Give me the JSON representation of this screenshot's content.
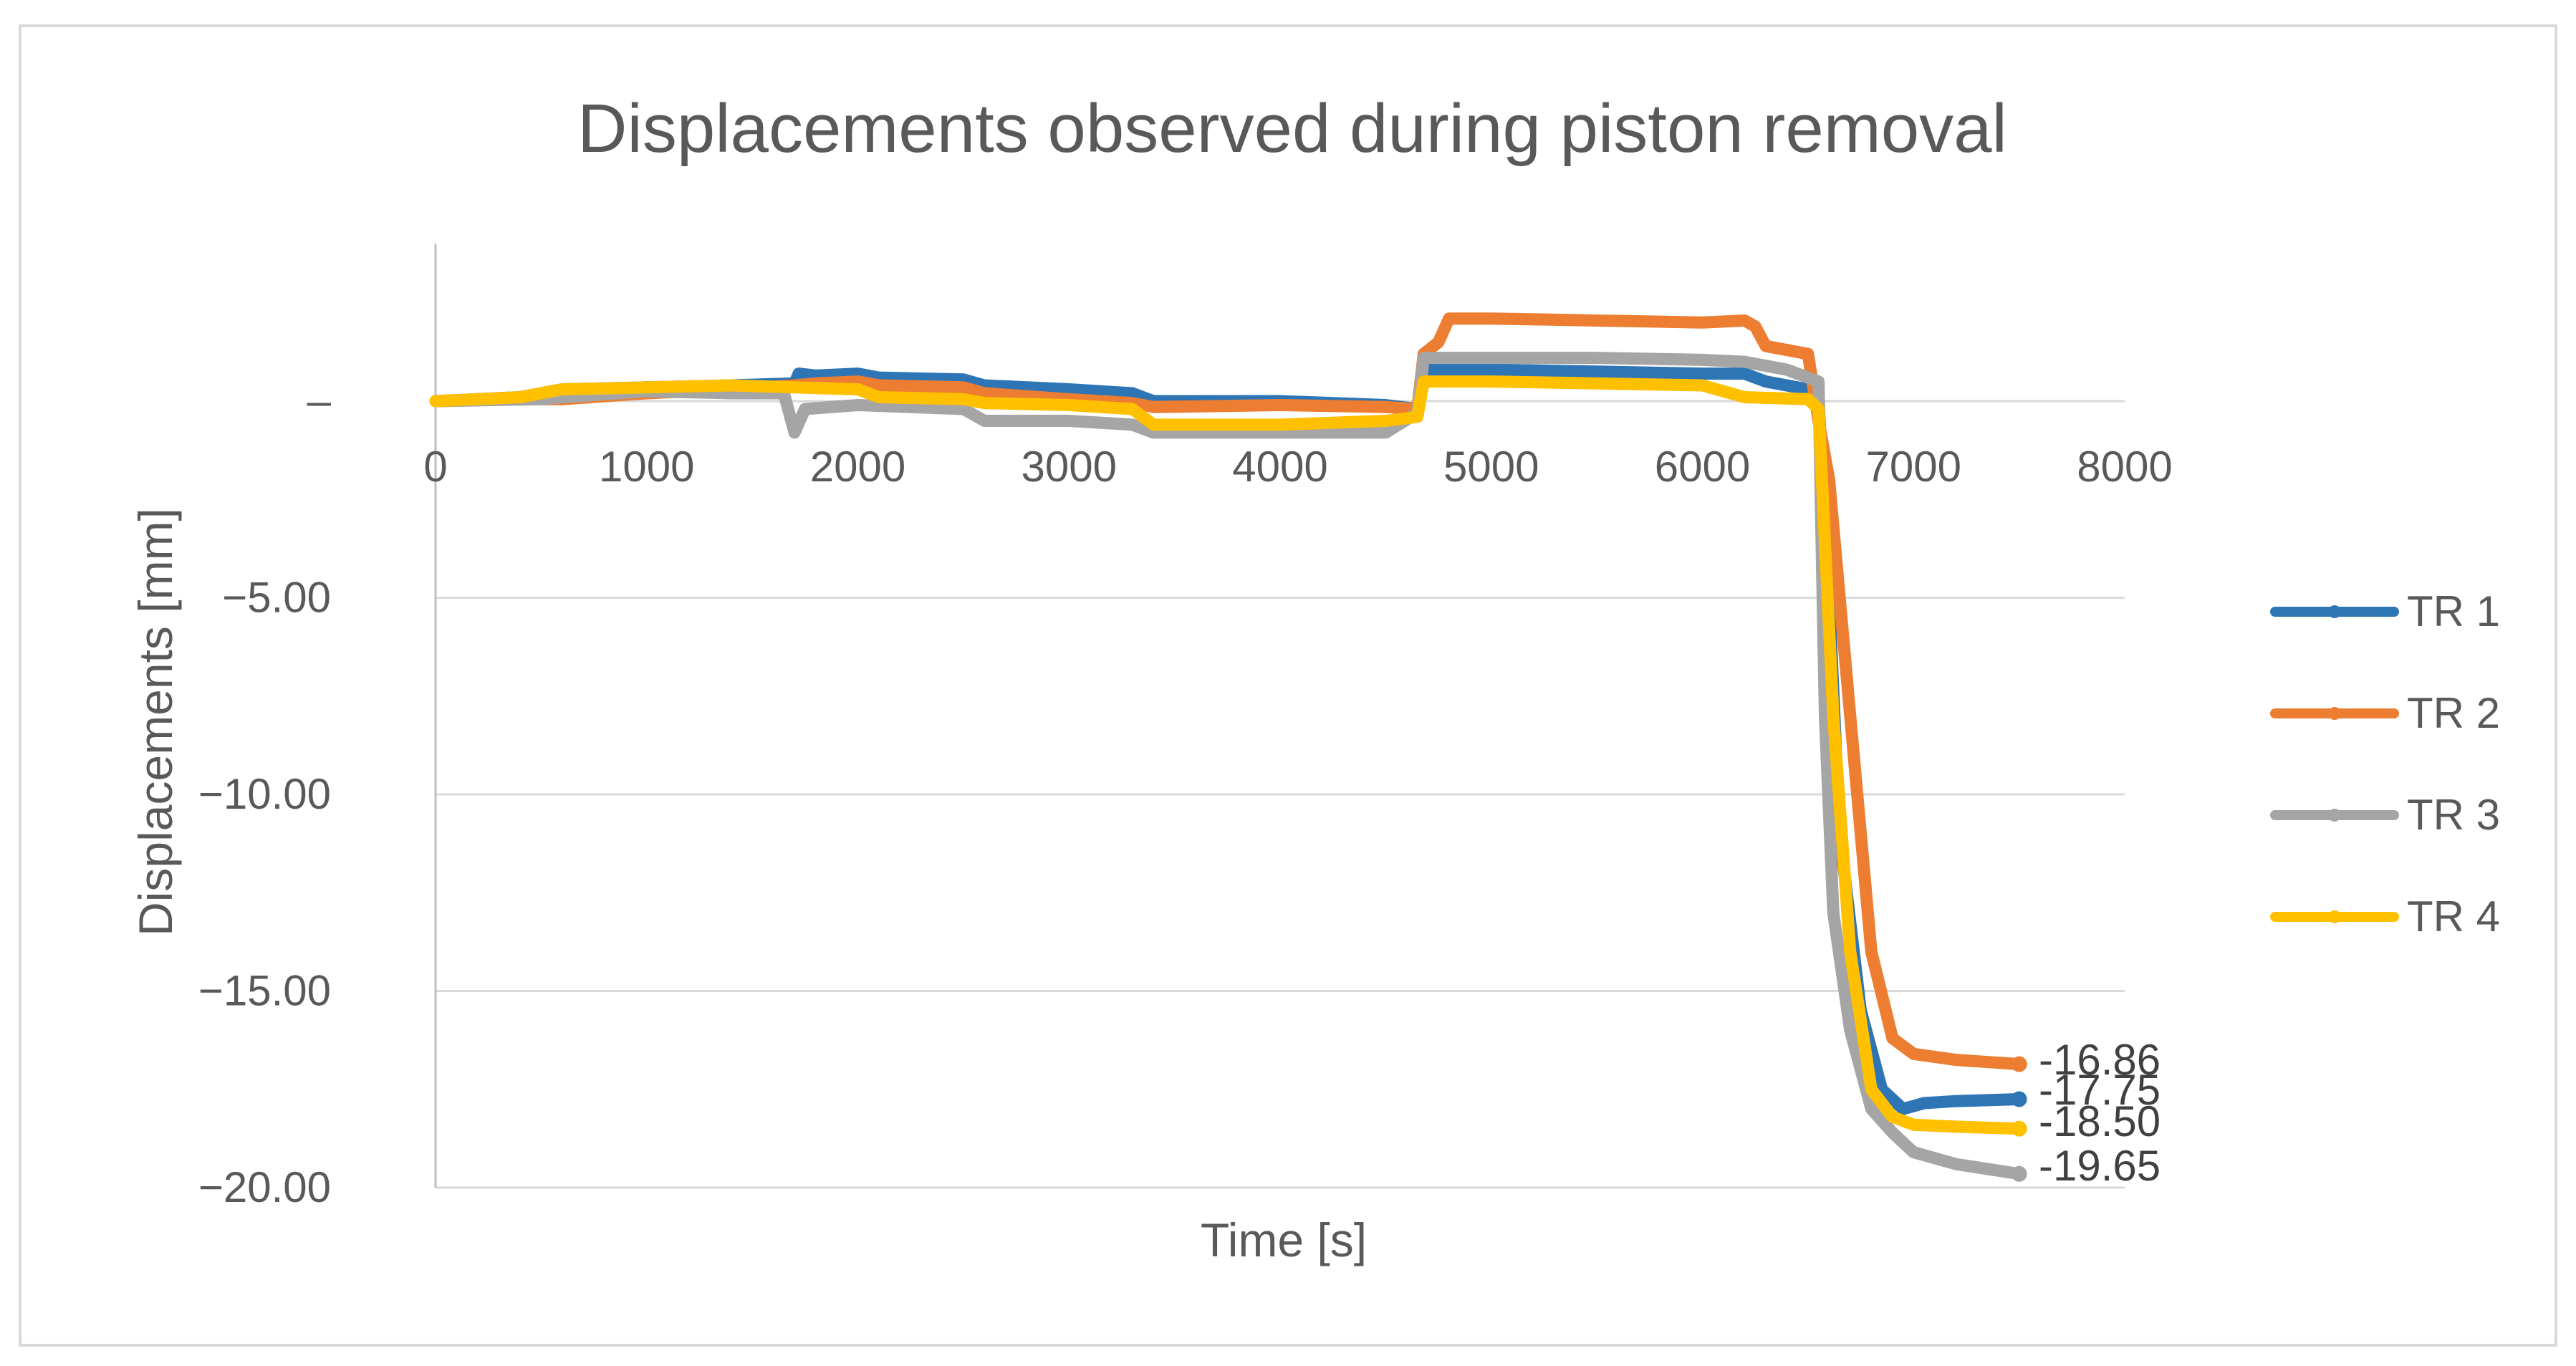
{
  "chart_data": {
    "type": "line",
    "title": "Displacements observed during piston removal",
    "xlabel": "Time [s]",
    "ylabel": "Displacements [mm]",
    "xlim": [
      0,
      8000
    ],
    "ylim": [
      -20,
      4
    ],
    "x_ticks": [
      "0",
      "1000",
      "2000",
      "3000",
      "4000",
      "5000",
      "6000",
      "7000",
      "8000"
    ],
    "y_ticks": [
      {
        "value": 0,
        "label": "–"
      },
      {
        "value": -5,
        "label": "−5.00"
      },
      {
        "value": -10,
        "label": "−10.00"
      },
      {
        "value": -15,
        "label": "−15.00"
      },
      {
        "value": -20,
        "label": "−20.00"
      }
    ],
    "grid": true,
    "legend_position": "right",
    "series": [
      {
        "name": "TR 1",
        "color": "#2e75b6",
        "end_label": "-17.75",
        "points": [
          [
            0,
            0
          ],
          [
            400,
            0.1
          ],
          [
            600,
            0.3
          ],
          [
            1000,
            0.35
          ],
          [
            1400,
            0.4
          ],
          [
            1700,
            0.45
          ],
          [
            1720,
            0.7
          ],
          [
            1800,
            0.65
          ],
          [
            2000,
            0.7
          ],
          [
            2100,
            0.6
          ],
          [
            2500,
            0.55
          ],
          [
            2600,
            0.4
          ],
          [
            3000,
            0.3
          ],
          [
            3300,
            0.2
          ],
          [
            3350,
            0.1
          ],
          [
            3400,
            0
          ],
          [
            4000,
            0
          ],
          [
            4500,
            -0.1
          ],
          [
            4650,
            -0.2
          ],
          [
            4680,
            0.8
          ],
          [
            5000,
            0.8
          ],
          [
            5500,
            0.75
          ],
          [
            6000,
            0.7
          ],
          [
            6200,
            0.7
          ],
          [
            6300,
            0.5
          ],
          [
            6500,
            0.3
          ],
          [
            6550,
            0
          ],
          [
            6600,
            -5
          ],
          [
            6650,
            -11
          ],
          [
            6750,
            -15.5
          ],
          [
            6850,
            -17.5
          ],
          [
            6950,
            -18
          ],
          [
            7050,
            -17.85
          ],
          [
            7200,
            -17.8
          ],
          [
            7500,
            -17.75
          ]
        ]
      },
      {
        "name": "TR 2",
        "color": "#ed7d31",
        "end_label": "-16.86",
        "points": [
          [
            0,
            0
          ],
          [
            400,
            0.05
          ],
          [
            600,
            0.05
          ],
          [
            1000,
            0.2
          ],
          [
            1400,
            0.3
          ],
          [
            1700,
            0.4
          ],
          [
            1800,
            0.45
          ],
          [
            2000,
            0.5
          ],
          [
            2100,
            0.4
          ],
          [
            2500,
            0.35
          ],
          [
            2600,
            0.2
          ],
          [
            3000,
            0.05
          ],
          [
            3300,
            -0.05
          ],
          [
            3400,
            -0.15
          ],
          [
            4000,
            -0.1
          ],
          [
            4500,
            -0.15
          ],
          [
            4650,
            -0.2
          ],
          [
            4680,
            1.2
          ],
          [
            4750,
            1.5
          ],
          [
            4800,
            2.1
          ],
          [
            5000,
            2.1
          ],
          [
            5500,
            2.05
          ],
          [
            6000,
            2.0
          ],
          [
            6200,
            2.05
          ],
          [
            6250,
            1.9
          ],
          [
            6300,
            1.4
          ],
          [
            6500,
            1.2
          ],
          [
            6550,
            -0.5
          ],
          [
            6600,
            -2
          ],
          [
            6700,
            -8
          ],
          [
            6800,
            -14
          ],
          [
            6900,
            -16.2
          ],
          [
            7000,
            -16.6
          ],
          [
            7200,
            -16.75
          ],
          [
            7500,
            -16.86
          ]
        ]
      },
      {
        "name": "TR 3",
        "color": "#a5a5a5",
        "end_label": "-19.65",
        "points": [
          [
            0,
            0
          ],
          [
            500,
            0.05
          ],
          [
            600,
            0.1
          ],
          [
            1000,
            0.25
          ],
          [
            1400,
            0.2
          ],
          [
            1650,
            0.2
          ],
          [
            1700,
            -0.8
          ],
          [
            1750,
            -0.2
          ],
          [
            2000,
            -0.1
          ],
          [
            2500,
            -0.2
          ],
          [
            2600,
            -0.5
          ],
          [
            3000,
            -0.5
          ],
          [
            3300,
            -0.6
          ],
          [
            3400,
            -0.8
          ],
          [
            4000,
            -0.8
          ],
          [
            4500,
            -0.8
          ],
          [
            4650,
            -0.3
          ],
          [
            4680,
            1.1
          ],
          [
            5000,
            1.1
          ],
          [
            5500,
            1.1
          ],
          [
            6000,
            1.05
          ],
          [
            6200,
            1.0
          ],
          [
            6400,
            0.8
          ],
          [
            6550,
            0.5
          ],
          [
            6580,
            -8
          ],
          [
            6620,
            -13
          ],
          [
            6700,
            -16
          ],
          [
            6800,
            -18
          ],
          [
            6900,
            -18.6
          ],
          [
            7000,
            -19.1
          ],
          [
            7200,
            -19.4
          ],
          [
            7500,
            -19.65
          ]
        ]
      },
      {
        "name": "TR 4",
        "color": "#ffc000",
        "end_label": "-18.50",
        "points": [
          [
            0,
            0
          ],
          [
            400,
            0.1
          ],
          [
            600,
            0.3
          ],
          [
            1000,
            0.35
          ],
          [
            1400,
            0.4
          ],
          [
            1700,
            0.35
          ],
          [
            2000,
            0.3
          ],
          [
            2100,
            0.1
          ],
          [
            2500,
            0.05
          ],
          [
            2600,
            -0.05
          ],
          [
            3000,
            -0.1
          ],
          [
            3300,
            -0.2
          ],
          [
            3350,
            -0.4
          ],
          [
            3400,
            -0.6
          ],
          [
            4000,
            -0.6
          ],
          [
            4500,
            -0.5
          ],
          [
            4650,
            -0.4
          ],
          [
            4680,
            0.5
          ],
          [
            5000,
            0.5
          ],
          [
            5500,
            0.45
          ],
          [
            6000,
            0.4
          ],
          [
            6200,
            0.1
          ],
          [
            6500,
            0.05
          ],
          [
            6550,
            -0.2
          ],
          [
            6620,
            -8
          ],
          [
            6700,
            -14
          ],
          [
            6800,
            -17.5
          ],
          [
            6900,
            -18.2
          ],
          [
            7000,
            -18.4
          ],
          [
            7200,
            -18.45
          ],
          [
            7500,
            -18.5
          ]
        ]
      }
    ]
  }
}
